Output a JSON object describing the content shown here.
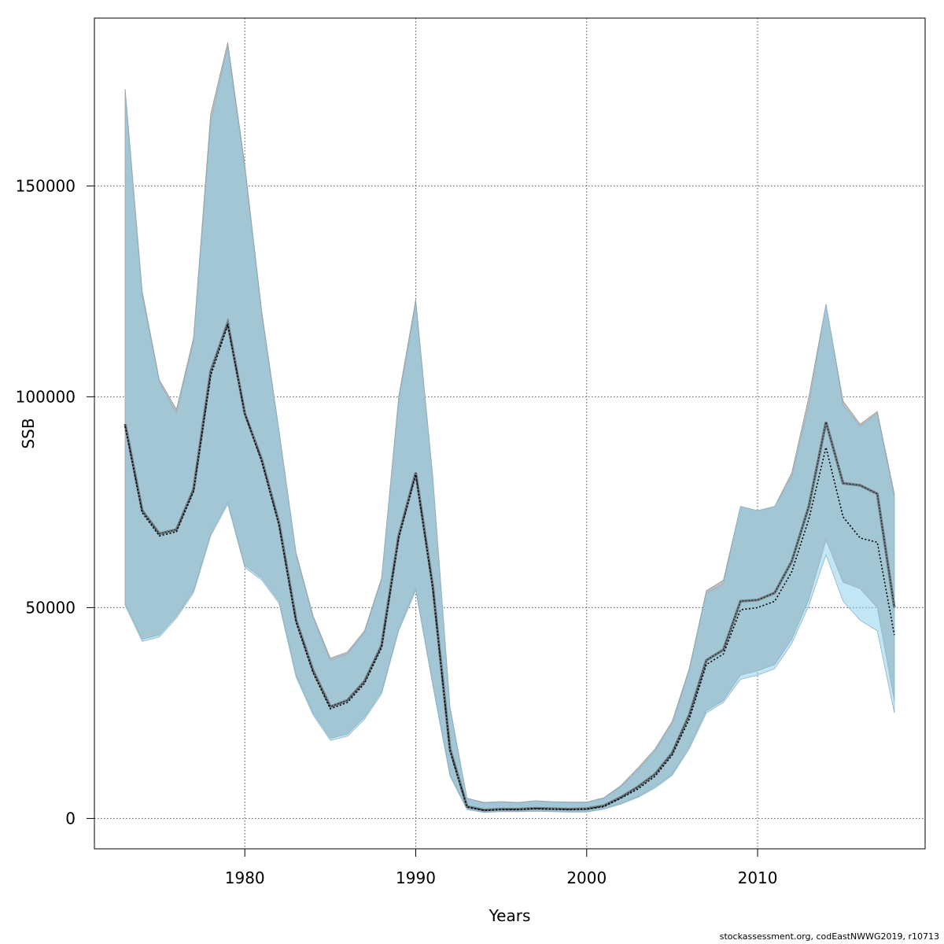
{
  "chart_data": {
    "type": "area",
    "xlabel": "Years",
    "ylabel": "SSB",
    "xlim": [
      1971.2,
      2019.8
    ],
    "ylim": [
      -7200,
      189800
    ],
    "x_ticks": [
      1980,
      1990,
      2000,
      2010
    ],
    "y_ticks": [
      0,
      50000,
      100000,
      150000
    ],
    "grid": true,
    "colors": {
      "band_grey": "#bebebe",
      "band_blue": "#87ceeb",
      "band_overlap": "#a3c5d6",
      "line": "#000000"
    },
    "series": [
      {
        "x": [
          1973,
          1974,
          1975,
          1976,
          1977,
          1978,
          1979,
          1980,
          1981,
          1982,
          1983,
          1984,
          1985,
          1986,
          1987,
          1988,
          1989,
          1990,
          1991,
          1992,
          1993,
          1994,
          1995,
          1996,
          1997,
          1998,
          1999,
          2000,
          2001,
          2002,
          2003,
          2004,
          2005,
          2006,
          2007,
          2008,
          2009,
          2010,
          2011,
          2012,
          2013,
          2014,
          2015,
          2016,
          2017,
          2018
        ],
        "estimate": [
          93500,
          73000,
          67500,
          68500,
          78000,
          106000,
          117500,
          96000,
          85000,
          70000,
          47000,
          35000,
          26500,
          28000,
          32500,
          41000,
          67000,
          82000,
          55000,
          16500,
          2800,
          2000,
          2200,
          2200,
          2400,
          2300,
          2200,
          2300,
          3000,
          5000,
          7500,
          10500,
          15500,
          24500,
          37500,
          40000,
          51500,
          51800,
          53500,
          61000,
          74000,
          94000,
          79500,
          79000,
          77000,
          50000
        ],
        "upper": [
          173000,
          125000,
          104000,
          97000,
          114000,
          167000,
          184000,
          155000,
          120000,
          92000,
          63000,
          48000,
          38000,
          39500,
          44500,
          57000,
          100000,
          123000,
          81000,
          26500,
          4800,
          3800,
          4000,
          3800,
          4200,
          4000,
          3900,
          3900,
          4900,
          7800,
          12000,
          16500,
          23000,
          35500,
          54000,
          56500,
          74000,
          73000,
          74000,
          82000,
          100000,
          122000,
          99000,
          93500,
          96500,
          77000
        ],
        "lower": [
          51000,
          42500,
          43500,
          48000,
          54000,
          67500,
          75000,
          60000,
          57000,
          51500,
          34000,
          25000,
          19000,
          20000,
          24000,
          30000,
          45000,
          54500,
          32000,
          10500,
          2200,
          1500,
          1700,
          1700,
          1800,
          1700,
          1600,
          1600,
          2300,
          3600,
          5200,
          7500,
          10500,
          17000,
          25500,
          28000,
          34000,
          35000,
          36500,
          42500,
          52000,
          66000,
          56000,
          54500,
          50000,
          28000
        ]
      },
      {
        "x": [
          1973,
          1974,
          1975,
          1976,
          1977,
          1978,
          1979,
          1980,
          1981,
          1982,
          1983,
          1984,
          1985,
          1986,
          1987,
          1988,
          1989,
          1990,
          1991,
          1992,
          1993,
          1994,
          1995,
          1996,
          1997,
          1998,
          1999,
          2000,
          2001,
          2002,
          2003,
          2004,
          2005,
          2006,
          2007,
          2008,
          2009,
          2010,
          2011,
          2012,
          2013,
          2014,
          2015,
          2016,
          2017,
          2018
        ],
        "estimate": [
          93000,
          72500,
          67000,
          68000,
          77500,
          105000,
          117000,
          96000,
          84500,
          69500,
          46500,
          34500,
          26000,
          27500,
          32000,
          40500,
          66500,
          81500,
          54500,
          16000,
          2700,
          1900,
          2100,
          2100,
          2300,
          2200,
          2100,
          2200,
          2800,
          4800,
          7000,
          10000,
          15000,
          23500,
          36500,
          39000,
          49500,
          50000,
          51500,
          58500,
          71000,
          88000,
          71500,
          66500,
          65500,
          43500
        ],
        "upper": [
          172000,
          124000,
          103500,
          96000,
          113000,
          165000,
          183000,
          154000,
          119000,
          91500,
          62500,
          47500,
          37500,
          39000,
          44000,
          56500,
          99000,
          122000,
          80500,
          26000,
          4700,
          3700,
          3900,
          3700,
          4100,
          3900,
          3800,
          3800,
          4800,
          7500,
          11500,
          16000,
          22500,
          35000,
          53500,
          55500,
          74000,
          73000,
          74000,
          81000,
          98000,
          122000,
          98000,
          93000,
          96000,
          76000
        ],
        "lower": [
          50500,
          42000,
          43000,
          47500,
          53500,
          67000,
          74500,
          59500,
          56500,
          51000,
          33500,
          24500,
          18500,
          19500,
          23500,
          29500,
          44500,
          54000,
          31500,
          10000,
          2100,
          1400,
          1600,
          1600,
          1700,
          1600,
          1500,
          1500,
          2200,
          3400,
          5000,
          7200,
          10200,
          16500,
          25000,
          27500,
          33000,
          34000,
          35500,
          41500,
          50500,
          62500,
          51500,
          47000,
          44500,
          25000
        ]
      }
    ]
  },
  "footer": {
    "credit": "stockassessment.org, codEastNWWG2019, r10713"
  }
}
